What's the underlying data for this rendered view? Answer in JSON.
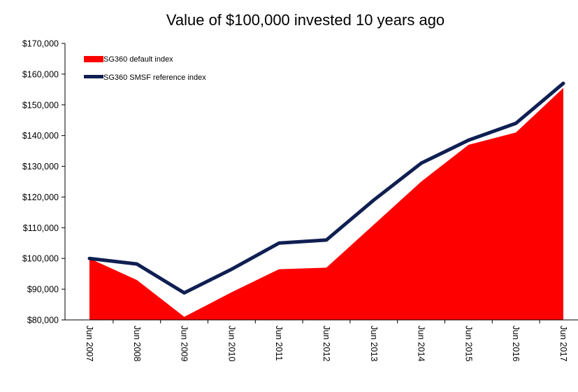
{
  "chart_data": {
    "type": "area",
    "title": "Value of $100,000 invested 10 years ago",
    "xlabel": "",
    "ylabel": "",
    "categories": [
      "Jun 2007",
      "Jun 2008",
      "Jun 2009",
      "Jun 2010",
      "Jun 2011",
      "Jun 2012",
      "Jun 2013",
      "Jun 2014",
      "Jun 2015",
      "Jun 2016",
      "Jun 2017"
    ],
    "ylim": [
      80000,
      170000
    ],
    "yticks": [
      80000,
      90000,
      100000,
      110000,
      120000,
      130000,
      140000,
      150000,
      160000,
      170000
    ],
    "ytick_labels": [
      "$80,000",
      "$90,000",
      "$100,000",
      "$110,000",
      "$120,000",
      "$130,000",
      "$140,000",
      "$150,000",
      "$160,000",
      "$170,000"
    ],
    "grid": false,
    "legend_position": "top-left",
    "series": [
      {
        "name": "SG360 default index",
        "type": "area",
        "color": "#ff0000",
        "values": [
          100000,
          93000,
          81000,
          89000,
          96500,
          97000,
          111000,
          125000,
          137000,
          141000,
          155500
        ]
      },
      {
        "name": "SG360 SMSF reference index",
        "type": "line",
        "color": "#0f1f52",
        "values": [
          100000,
          98200,
          88800,
          96500,
          105000,
          106000,
          119000,
          131000,
          138500,
          144000,
          157000
        ]
      }
    ]
  }
}
